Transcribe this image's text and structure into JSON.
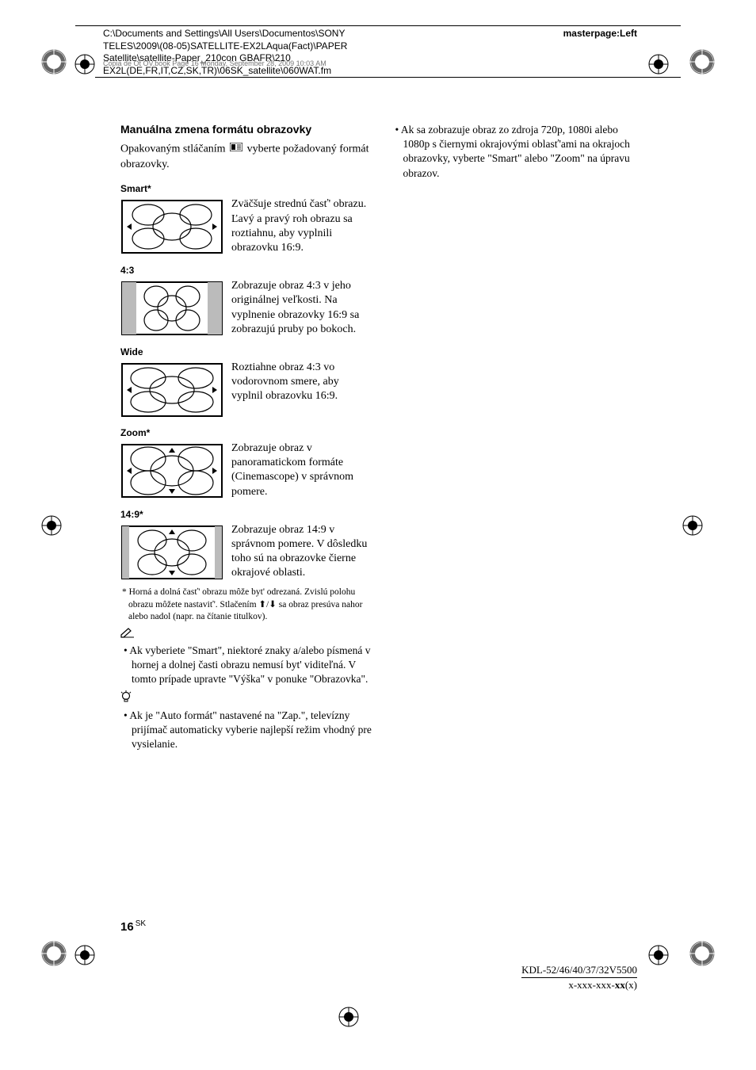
{
  "header": {
    "path_line1": "C:\\Documents and Settings\\All Users\\Documentos\\SONY",
    "path_line2": "TELES\\2009\\(08-05)SATELLITE-EX2LAqua(Fact)\\PAPER",
    "path_line3": "Satellite\\satellite-Paper_210con GBAFR\\210",
    "path_line4": "EX2L(DE,FR,IT,CZ,SK,TR)\\06SK_satellite\\060WAT.fm",
    "overlap_text": "Copia de Ot OV.book  Page 16  Monday, September 28, 2009  10:03 AM",
    "masterpage": "masterpage:Left"
  },
  "main": {
    "title": "Manuálna zmena formátu obrazovky",
    "intro_pre": "Opakovaným stláčaním ",
    "intro_post": " vyberte požadovaný formát obrazovky.",
    "formats": [
      {
        "label": "Smart*",
        "desc": "Zväčšuje strednú časť' obrazu. Ľavý a pravý roh obrazu sa roztiahnu, aby vyplnili obrazovku 16:9.",
        "type": "smart"
      },
      {
        "label": "4:3",
        "desc": "Zobrazuje obraz 4:3 v jeho originálnej veľkosti. Na vyplnenie obrazovky 16:9 sa zobrazujú pruby po bokoch.",
        "type": "43"
      },
      {
        "label": "Wide",
        "desc": "Roztiahne obraz 4:3 vo vodorovnom smere, aby vyplnil obrazovku 16:9.",
        "type": "wide"
      },
      {
        "label": "Zoom*",
        "desc": "Zobrazuje obraz v panoramatickom formáte (Cinemascope) v správnom pomere.",
        "type": "zoom"
      },
      {
        "label": "14:9*",
        "desc": "Zobrazuje obraz 14:9 v správnom pomere. V dôsledku toho sú na obrazovke čierne okrajové oblasti.",
        "type": "149"
      }
    ],
    "footnote": "* Horná a dolná časť' obrazu môže byt' odrezaná. Zvislú polohu obrazu môžete nastaviť'. Stlačením ⬆/⬇ sa obraz presúva nahor alebo nadol (napr. na čítanie titulkov).",
    "pencil_bullet": "• Ak vyberiete \"Smart\", niektoré znaky a/alebo písmená v hornej a dolnej časti obrazu nemusí byt' viditeľná. V tomto prípade upravte \"Výška\" v ponuke \"Obrazovka\".",
    "bulb_bullet": "• Ak je \"Auto formát\" nastavené na \"Zap.\", televízny prijímač automaticky vyberie najlepší režim vhodný pre vysielanie.",
    "right_bullet": "• Ak sa zobrazuje obraz zo zdroja 720p, 1080i alebo 1080p s čiernymi okrajovými oblasť'ami na okrajoch obrazovky, vyberte \"Smart\" alebo \"Zoom\" na úpravu obrazov."
  },
  "footer": {
    "page_num": "16",
    "page_lang": "SK",
    "model": "KDL-52/46/40/37/32V5500",
    "part": "x-xxx-xxx-",
    "part_bold": "xx",
    "part_end": "(x)"
  }
}
